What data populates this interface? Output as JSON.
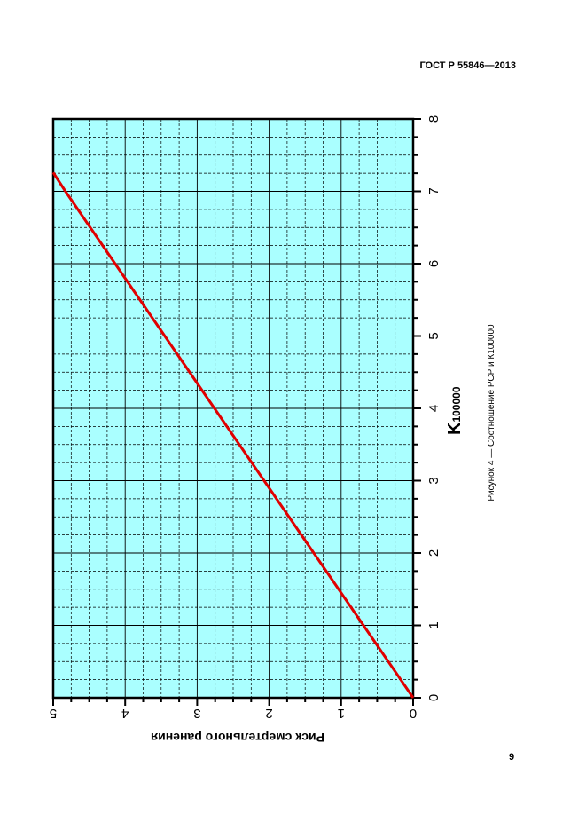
{
  "header": {
    "standard": "ГОСТ Р 55846—2013"
  },
  "page": {
    "number": "9"
  },
  "figure": {
    "caption": "Рисунок 4 — Соотношение РСР и К100000"
  },
  "chart_data": {
    "type": "line",
    "orientation": "rotated-90-counterclockwise",
    "xlabel": "K",
    "xlabel_subscript": "100000",
    "ylabel": "Риск смертельного ранения",
    "xlim": [
      0,
      8
    ],
    "ylim": [
      0,
      5
    ],
    "x_ticks": [
      "0",
      "1",
      "2",
      "3",
      "4",
      "5",
      "6",
      "7",
      "8"
    ],
    "y_ticks": [
      "0",
      "1",
      "2",
      "3",
      "4",
      "5"
    ],
    "grid": true,
    "series": [
      {
        "x": [
          0,
          1,
          2,
          3,
          4,
          5,
          6,
          7,
          7.26
        ],
        "y": [
          0,
          0.69,
          1.38,
          2.07,
          2.76,
          3.45,
          4.14,
          4.83,
          5.0
        ]
      }
    ],
    "colors": {
      "plot_background": "#aaffff",
      "line": "#e00000",
      "grid": "#000000"
    }
  }
}
